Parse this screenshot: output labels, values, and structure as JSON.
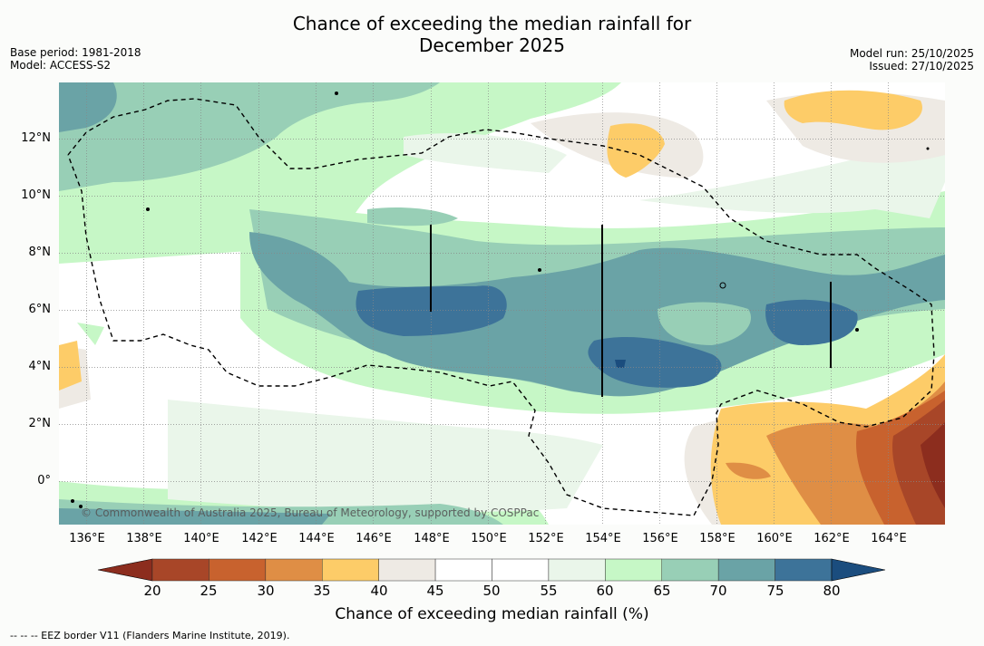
{
  "title_line1": "Chance of exceeding the median rainfall for",
  "title_line2": "December 2025",
  "meta": {
    "base_period": "Base period: 1981-2018",
    "model": "Model: ACCESS-S2",
    "model_run": "Model run: 25/10/2025",
    "issued": "Issued: 27/10/2025"
  },
  "axes": {
    "x_ticks": [
      "136°E",
      "138°E",
      "140°E",
      "142°E",
      "144°E",
      "146°E",
      "148°E",
      "150°E",
      "152°E",
      "154°E",
      "156°E",
      "158°E",
      "160°E",
      "162°E",
      "164°E"
    ],
    "y_ticks": [
      "12°N",
      "10°N",
      "8°N",
      "6°N",
      "4°N",
      "2°N",
      "0°"
    ]
  },
  "copyright": "© Commonwealth of Australia 2025, Bureau of Meteorology, supported by COSPPac",
  "colorbar": {
    "label": "Chance of exceeding median rainfall (%)",
    "ticks": [
      "20",
      "25",
      "30",
      "35",
      "40",
      "45",
      "50",
      "55",
      "60",
      "65",
      "70",
      "75",
      "80"
    ],
    "colors": [
      "#8c2d1e",
      "#a84628",
      "#c8622e",
      "#df8e45",
      "#fdcc68",
      "#eeeae4",
      "#ffffff",
      "#ffffff",
      "#eaf6ea",
      "#c6f7c6",
      "#98cfb6",
      "#6aa3a6",
      "#3d7399",
      "#1b4d7e"
    ]
  },
  "footer": "--  --  -- EEZ border V11 (Flanders Marine Institute, 2019)."
}
